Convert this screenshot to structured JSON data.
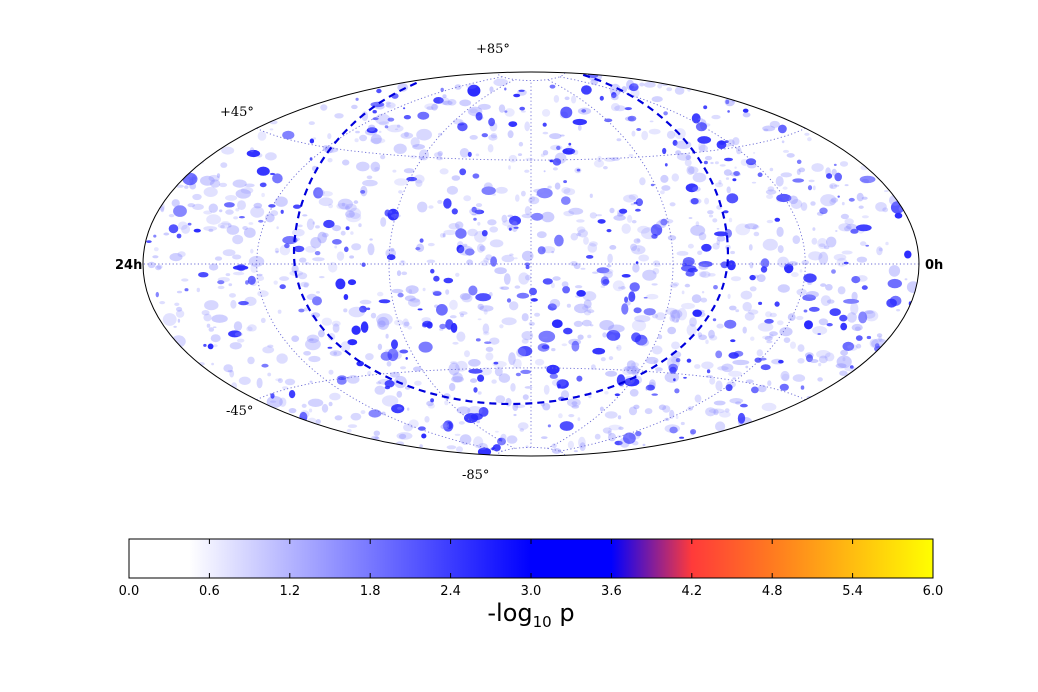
{
  "chart_data": {
    "type": "heatmap",
    "projection": "hammer-aitoff",
    "map_description": "Sky map of -log10 p significance values (mostly 0–3.6)",
    "ra_labels": {
      "left": "24h",
      "right": "0h"
    },
    "dec_labels": [
      "+85°",
      "+45°",
      "-45°",
      "-85°"
    ],
    "graticule": {
      "dec_lines_deg": [
        -45,
        0,
        45
      ],
      "ra_lines_hours": [
        4,
        8,
        12,
        16,
        20
      ],
      "style": "dotted"
    },
    "galactic_plane": {
      "style": "dashed",
      "color": "#0000dd"
    },
    "colorbar": {
      "min": 0.0,
      "max": 6.0,
      "ticks": [
        "0.0",
        "0.6",
        "1.2",
        "1.8",
        "2.4",
        "3.0",
        "3.6",
        "4.2",
        "4.8",
        "5.4",
        "6.0"
      ],
      "label_main": "-log",
      "label_sub": "10",
      "label_tail": " p",
      "gradient": [
        {
          "value": 0.0,
          "color": "#ffffff"
        },
        {
          "value": 0.45,
          "color": "#ffffff"
        },
        {
          "value": 3.0,
          "color": "#0000ff"
        },
        {
          "value": 3.6,
          "color": "#0000ff"
        },
        {
          "value": 4.2,
          "color": "#ff3a3a"
        },
        {
          "value": 4.8,
          "color": "#ff7a20"
        },
        {
          "value": 6.0,
          "color": "#ffff00"
        }
      ]
    }
  }
}
